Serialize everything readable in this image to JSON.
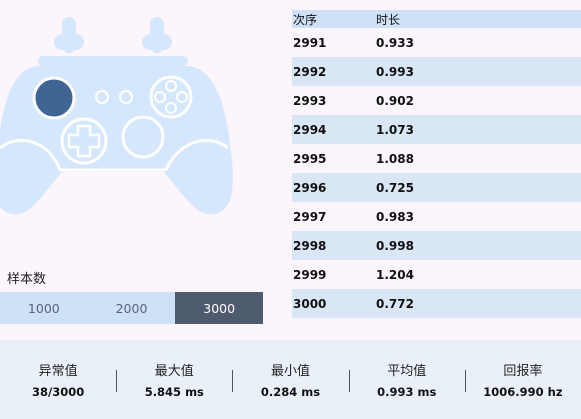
{
  "table": {
    "headers": {
      "index": "次序",
      "duration": "时长"
    },
    "rows": [
      {
        "index": "2991",
        "duration": "0.933"
      },
      {
        "index": "2992",
        "duration": "0.993"
      },
      {
        "index": "2993",
        "duration": "0.902"
      },
      {
        "index": "2994",
        "duration": "1.073"
      },
      {
        "index": "2995",
        "duration": "1.088"
      },
      {
        "index": "2996",
        "duration": "0.725"
      },
      {
        "index": "2997",
        "duration": "0.983"
      },
      {
        "index": "2998",
        "duration": "0.998"
      },
      {
        "index": "2999",
        "duration": "1.204"
      },
      {
        "index": "3000",
        "duration": "0.772"
      }
    ]
  },
  "samples": {
    "label": "样本数",
    "options": [
      "1000",
      "2000",
      "3000"
    ],
    "selected": "3000"
  },
  "stats": [
    {
      "label": "异常值",
      "value": "38/3000"
    },
    {
      "label": "最大值",
      "value": "5.845 ms"
    },
    {
      "label": "最小值",
      "value": "0.284 ms"
    },
    {
      "label": "平均值",
      "value": "0.993 ms"
    },
    {
      "label": "回报率",
      "value": "1006.990 hz"
    }
  ],
  "colors": {
    "controller_body": "#d5e7fc",
    "controller_highlight": "#3e6593",
    "controller_line": "#ffffff",
    "active_sample": "#4e5a6e"
  }
}
